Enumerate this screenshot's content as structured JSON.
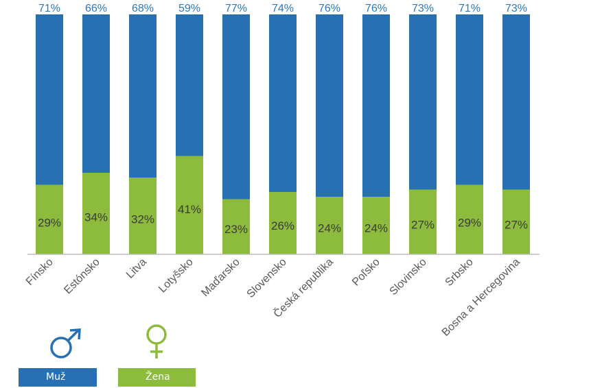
{
  "chart_data": {
    "type": "bar",
    "stacked": true,
    "categories": [
      "Fínsko",
      "Estónsko",
      "Litva",
      "Lotyšsko",
      "Maďarsko",
      "Slovensko",
      "Česká republika",
      "Poľsko",
      "Slovinsko",
      "Srbsko",
      "Bosna a Hercegovina"
    ],
    "series": [
      {
        "name": "Žena",
        "values": [
          29,
          34,
          32,
          41,
          23,
          26,
          24,
          24,
          27,
          29,
          27
        ],
        "labels": [
          "29%",
          "34%",
          "32%",
          "41%",
          "23%",
          "26%",
          "24%",
          "24%",
          "27%",
          "29%",
          "27%"
        ]
      },
      {
        "name": "Muž",
        "values": [
          71,
          66,
          68,
          59,
          77,
          74,
          76,
          76,
          73,
          71,
          73
        ],
        "labels": [
          "71%",
          "66%",
          "68%",
          "59%",
          "77%",
          "74%",
          "76%",
          "76%",
          "73%",
          "71%",
          "73%"
        ]
      }
    ],
    "ylim": [
      0,
      100
    ],
    "grid": false,
    "legend_placement": "bottom-left"
  },
  "legend": {
    "male_label": "Muž",
    "female_label": "Žena",
    "male_icon": "male-symbol-icon",
    "female_icon": "female-symbol-icon"
  },
  "colors": {
    "male": "#2771b3",
    "female": "#8dbb3d",
    "male_text": "#2f77b9",
    "female_text": "#3a3a3a",
    "axis": "#bfbfbf",
    "tick_text": "#595959"
  }
}
